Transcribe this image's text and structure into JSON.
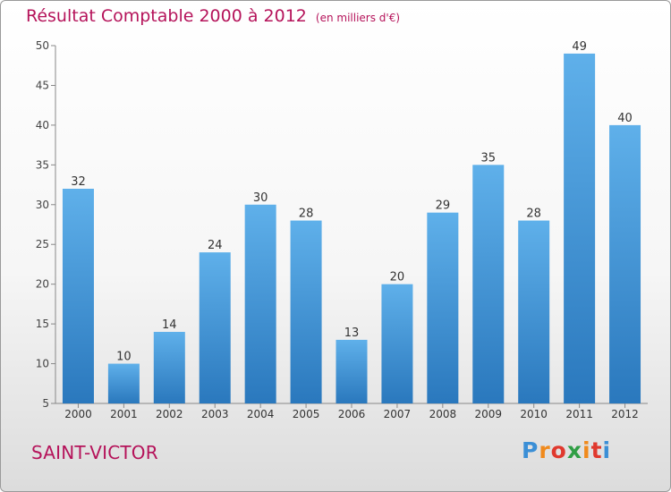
{
  "header": {
    "title": "Résultat Comptable 2000 à 2012",
    "unit": "(en milliers d'€)"
  },
  "footer": {
    "commune": "SAINT-VICTOR",
    "logo_text": "Proxiti"
  },
  "chart_data": {
    "type": "bar",
    "categories": [
      "2000",
      "2001",
      "2002",
      "2003",
      "2004",
      "2005",
      "2006",
      "2007",
      "2008",
      "2009",
      "2010",
      "2011",
      "2012"
    ],
    "values": [
      32,
      10,
      14,
      24,
      30,
      28,
      13,
      20,
      29,
      35,
      28,
      49,
      40
    ],
    "ylim": [
      5,
      50
    ],
    "yticks": [
      5,
      10,
      15,
      20,
      25,
      30,
      35,
      40,
      45,
      50
    ],
    "grid": false,
    "bar_color": "#4a9ee0",
    "title_color": "#b5135a"
  }
}
